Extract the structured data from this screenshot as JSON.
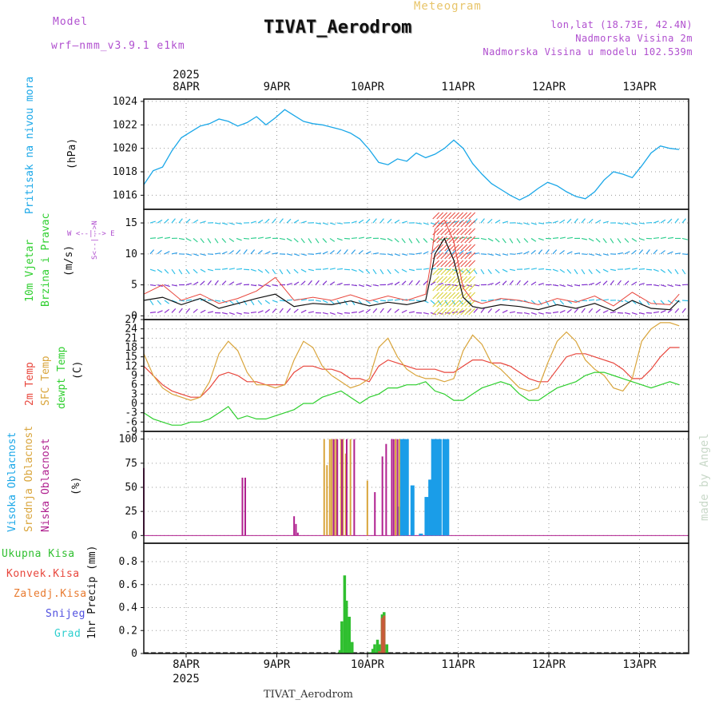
{
  "header": {
    "model_label": "Model",
    "model_name": "wrf—nmm_v3.9.1  e1km",
    "meteogram": "Meteogram",
    "title": "TIVAT_Aerodrom",
    "lonlat": "lon,lat (18.73E, 42.4N)",
    "elevation": "Nadmorska Visina 2m",
    "model_elevation": "Nadmorska Visina u modelu 102.539m"
  },
  "footer": {
    "station": "TIVAT_Aerodrom"
  },
  "credit": "made by Angel",
  "x_axis": {
    "year": "2025",
    "ticks": [
      "8APR",
      "9APR",
      "10APR",
      "11APR",
      "12APR",
      "13APR"
    ]
  },
  "colors": {
    "pressure": "#1aa7e8",
    "temp2m": "#e8463c",
    "sfc_temp": "#d9a53c",
    "dewpt": "#2fcf2f",
    "high_cloud": "#1a9de8",
    "mid_cloud": "#d9a53c",
    "low_cloud": "#b0208f",
    "precip_total": "#2fbf2f",
    "precip_conv": "#e8463c",
    "precip_frozen": "#e87a2f",
    "snow": "#5050e0",
    "hail": "#2fcfcf",
    "wind_speed": "#111111",
    "gust": "#e8463c"
  },
  "panels": {
    "pressure": {
      "label": "Pritisak na nivou mora",
      "unit": "(hPa)"
    },
    "wind": {
      "label1": "10m Vjetar",
      "label2": "Brzina i Pravac",
      "unit": "(m/s)",
      "compass": "W  <--|-->  E",
      "compass_v": "S<--|-->N"
    },
    "temp": {
      "label1": "2m Temp",
      "label2": "SFC Temp",
      "label3": "dewpt Temp",
      "unit": "(C)"
    },
    "cloud": {
      "label1": "Visoka Oblacnost",
      "label2": "Srednja Oblacnost",
      "label3": "Niska Oblacnost",
      "unit": "(%)"
    },
    "precip": {
      "unit": "1hr Precip (mm)",
      "legend": [
        "Ukupna Kisa",
        "Konvek.Kisa",
        "Zaledj.Kisa",
        "Snijeg",
        "Grad"
      ]
    }
  },
  "chart_data": [
    {
      "type": "line",
      "title": "Pritisak na nivou mora",
      "ylabel": "(hPa)",
      "ylim": [
        1014.8,
        1024.2
      ],
      "yticks": [
        1016,
        1018,
        1020,
        1022,
        1024
      ],
      "x": [
        0,
        0.1,
        0.2,
        0.3,
        0.4,
        0.5,
        0.6,
        0.7,
        0.8,
        0.9,
        1.0,
        1.1,
        1.2,
        1.3,
        1.4,
        1.5,
        1.6,
        1.7,
        1.8,
        1.9,
        2.0,
        2.1,
        2.2,
        2.3,
        2.4,
        2.5,
        2.6,
        2.7,
        2.8,
        2.9,
        3.0,
        3.1,
        3.2,
        3.3,
        3.4,
        3.5,
        3.6,
        3.7,
        3.8,
        3.9,
        4.0,
        4.1,
        4.2,
        4.3,
        4.4,
        4.5,
        4.6,
        4.7,
        4.8,
        4.9,
        5.0,
        5.1,
        5.2,
        5.3,
        5.4,
        5.5,
        5.6,
        5.7
      ],
      "series": [
        {
          "name": "",
          "values": [
            1016.9,
            1018.1,
            1018.4,
            1019.8,
            1020.9,
            1021.4,
            1021.9,
            1022.1,
            1022.5,
            1022.3,
            1021.9,
            1022.2,
            1022.7,
            1022.0,
            1022.6,
            1023.3,
            1022.8,
            1022.3,
            1022.1,
            1022.0,
            1021.8,
            1021.6,
            1021.3,
            1020.8,
            1019.9,
            1018.8,
            1018.6,
            1019.1,
            1018.9,
            1019.6,
            1019.2,
            1019.5,
            1020.0,
            1020.7,
            1020.0,
            1018.7,
            1017.8,
            1017.0,
            1016.5,
            1016.0,
            1015.6,
            1016.0,
            1016.6,
            1017.1,
            1016.8,
            1016.3,
            1015.9,
            1015.7,
            1016.3,
            1017.3,
            1018.0,
            1017.8,
            1017.5,
            1018.5,
            1019.6,
            1020.2,
            1020.0,
            1019.9
          ]
        }
      ]
    },
    {
      "type": "line",
      "title": "10m Vjetar Brzina i Pravac",
      "ylabel": "(m/s)",
      "ylim": [
        -0.6,
        17.2
      ],
      "yticks": [
        0,
        5,
        10,
        15
      ],
      "x": [
        0,
        0.2,
        0.4,
        0.6,
        0.8,
        1.0,
        1.2,
        1.4,
        1.6,
        1.8,
        2.0,
        2.2,
        2.4,
        2.6,
        2.8,
        3.0,
        3.05,
        3.1,
        3.2,
        3.3,
        3.4,
        3.5,
        3.6,
        3.8,
        4.0,
        4.2,
        4.4,
        4.6,
        4.8,
        5.0,
        5.2,
        5.4,
        5.6,
        5.7
      ],
      "series": [
        {
          "name": "",
          "values": [
            2.5,
            3.0,
            1.8,
            2.8,
            1.2,
            2.0,
            2.8,
            3.5,
            1.5,
            2.0,
            1.8,
            2.4,
            1.6,
            2.2,
            1.8,
            2.5,
            6.0,
            10.0,
            12.5,
            9.0,
            3.0,
            1.5,
            1.2,
            1.8,
            1.5,
            1.0,
            1.8,
            1.2,
            2.0,
            0.8,
            2.5,
            1.2,
            1.0,
            2.5
          ]
        },
        {
          "name": "",
          "values": [
            3.5,
            5.0,
            2.5,
            3.5,
            2.0,
            2.8,
            4.0,
            6.2,
            2.5,
            3.0,
            2.5,
            3.4,
            2.4,
            3.2,
            2.5,
            3.5,
            8.0,
            14.0,
            15.5,
            12.0,
            4.5,
            2.5,
            2.0,
            2.8,
            2.5,
            1.8,
            2.8,
            2.2,
            3.2,
            1.6,
            3.8,
            2.0,
            1.8,
            3.5
          ]
        }
      ]
    },
    {
      "type": "line",
      "title": "2m Temp / SFC Temp / dewpt Temp",
      "ylabel": "(C)",
      "ylim": [
        -9,
        27
      ],
      "yticks": [
        -9,
        -6,
        -3,
        0,
        3,
        6,
        9,
        12,
        15,
        18,
        21,
        24,
        27
      ],
      "x": [
        0,
        0.1,
        0.2,
        0.3,
        0.4,
        0.5,
        0.6,
        0.7,
        0.8,
        0.9,
        1.0,
        1.1,
        1.2,
        1.3,
        1.4,
        1.5,
        1.6,
        1.7,
        1.8,
        1.9,
        2.0,
        2.1,
        2.2,
        2.3,
        2.4,
        2.5,
        2.6,
        2.7,
        2.8,
        2.9,
        3.0,
        3.1,
        3.2,
        3.3,
        3.4,
        3.5,
        3.6,
        3.7,
        3.8,
        3.9,
        4.0,
        4.1,
        4.2,
        4.3,
        4.4,
        4.5,
        4.6,
        4.7,
        4.8,
        4.9,
        5.0,
        5.1,
        5.2,
        5.3,
        5.4,
        5.5,
        5.6,
        5.7
      ],
      "series": [
        {
          "name": "2m Temp",
          "values": [
            12,
            9,
            6,
            4,
            3,
            2,
            2,
            5,
            9,
            10,
            9,
            7,
            7,
            6,
            6,
            6,
            10,
            12,
            12,
            11,
            11,
            10,
            8,
            8,
            7,
            12,
            14,
            13,
            12,
            11,
            11,
            11,
            10,
            10,
            12,
            14,
            14,
            13,
            13,
            12,
            10,
            8,
            7,
            7,
            11,
            15,
            16,
            16,
            15,
            14,
            13,
            11,
            8,
            8,
            11,
            15,
            18,
            18
          ]
        },
        {
          "name": "SFC Temp",
          "values": [
            16,
            9,
            5,
            3,
            2,
            1,
            2,
            7,
            16,
            20,
            17,
            10,
            6,
            6,
            5,
            6,
            14,
            20,
            18,
            12,
            9,
            7,
            5,
            6,
            8,
            18,
            21,
            15,
            11,
            9,
            8,
            8,
            7,
            8,
            17,
            22,
            19,
            13,
            11,
            8,
            5,
            4,
            5,
            13,
            20,
            23,
            20,
            14,
            11,
            9,
            5,
            4,
            8,
            20,
            24,
            26,
            26,
            25
          ]
        },
        {
          "name": "dewpt Temp",
          "values": [
            -3,
            -5,
            -6,
            -7,
            -7,
            -6,
            -6,
            -5,
            -3,
            -1,
            -5,
            -4,
            -5,
            -5,
            -4,
            -3,
            -2,
            0,
            0,
            2,
            3,
            4,
            2,
            0,
            2,
            3,
            5,
            5,
            6,
            6,
            7,
            4,
            3,
            1,
            1,
            3,
            5,
            6,
            7,
            6,
            3,
            1,
            1,
            3,
            5,
            6,
            7,
            9,
            10,
            10,
            9,
            8,
            7,
            6,
            5,
            6,
            7,
            6
          ]
        }
      ]
    },
    {
      "type": "bar",
      "title": "Oblacnost",
      "ylabel": "(%)",
      "ylim": [
        -8,
        108
      ],
      "yticks": [
        0,
        25,
        50,
        75,
        100
      ],
      "series": [
        {
          "name": "Visoka Oblacnost",
          "x": [
            2.72,
            2.75,
            2.77,
            2.8,
            2.86,
            2.95,
            3.01,
            3.05,
            3.08,
            3.1,
            3.12,
            3.15,
            3.2,
            3.23
          ],
          "values": [
            30,
            100,
            100,
            100,
            52,
            2,
            40,
            58,
            100,
            100,
            100,
            100,
            100,
            100
          ]
        },
        {
          "name": "Srednja Oblacnost",
          "x": [
            1.92,
            1.95,
            1.98,
            2.0,
            2.03,
            2.05,
            2.1,
            2.12,
            2.15,
            2.2,
            2.38,
            2.68,
            2.72
          ],
          "values": [
            100,
            73,
            100,
            100,
            100,
            100,
            100,
            100,
            85,
            100,
            57,
            100,
            100
          ]
        },
        {
          "name": "Niska Oblacnost",
          "x": [
            0.0,
            1.05,
            1.08,
            1.6,
            1.62,
            1.64,
            2.02,
            2.06,
            2.11,
            2.16,
            2.24,
            2.46,
            2.54,
            2.58,
            2.64,
            2.66,
            2.7
          ],
          "values": [
            70,
            60,
            60,
            20,
            12,
            3,
            100,
            100,
            100,
            100,
            100,
            45,
            82,
            95,
            100,
            100,
            100
          ]
        }
      ]
    },
    {
      "type": "bar",
      "title": "1hr Precip",
      "ylabel": "1hr Precip (mm)",
      "ylim": [
        0,
        0.96
      ],
      "yticks": [
        0,
        0.2,
        0.4,
        0.6,
        0.8
      ],
      "series": [
        {
          "name": "Ukupna Kisa",
          "x": [
            2.09,
            2.11,
            2.14,
            2.16,
            2.19,
            2.22,
            2.41,
            2.44,
            2.46,
            2.49,
            2.51,
            2.54,
            2.56,
            2.59
          ],
          "values": [
            0.03,
            0.28,
            0.68,
            0.46,
            0.32,
            0.1,
            0.01,
            0.04,
            0.08,
            0.12,
            0.08,
            0.34,
            0.36,
            0.08
          ]
        },
        {
          "name": "Konvek.Kisa",
          "x": [
            2.51,
            2.54,
            2.56
          ],
          "values": [
            0.02,
            0.31,
            0.33
          ]
        }
      ]
    }
  ]
}
